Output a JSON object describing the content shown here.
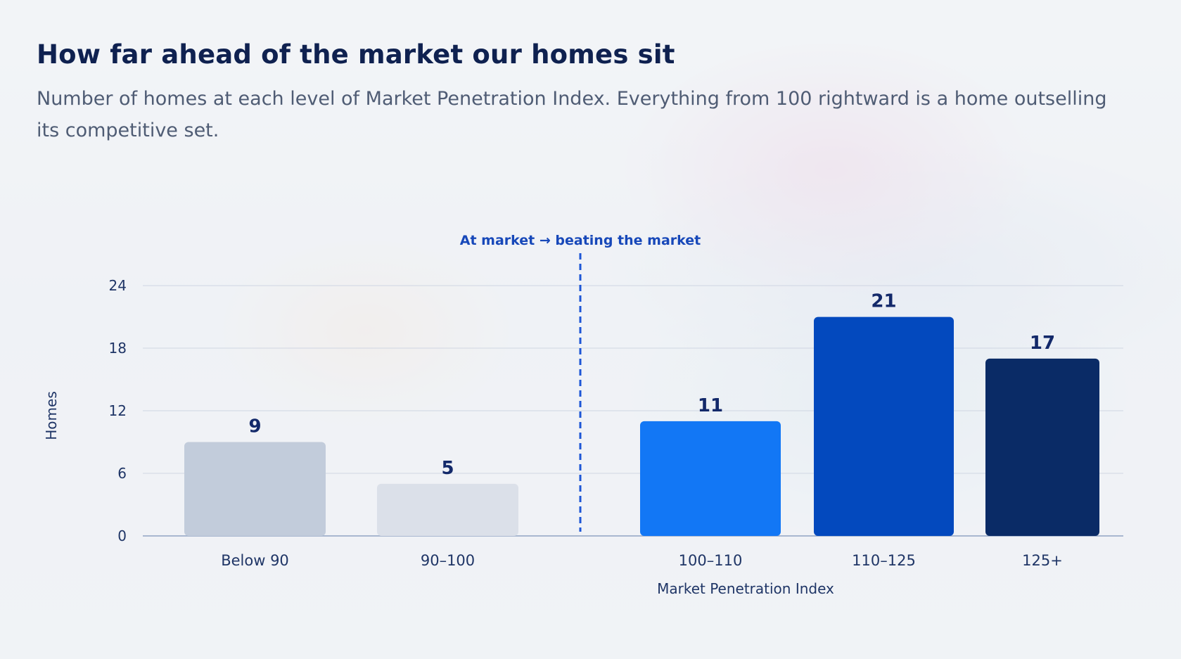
{
  "header": {
    "title": "How far ahead of the market our homes sit",
    "subtitle": "Number of homes at each level of Market Penetration Index. Everything from 100 rightward is a home outselling its competitive set."
  },
  "chart_data": {
    "type": "bar",
    "title": "How far ahead of the market our homes sit",
    "subtitle": "Number of homes at each level of Market Penetration Index. Everything from 100 rightward is a home outselling its competitive set.",
    "xlabel": "Market Penetration Index",
    "ylabel": "Homes",
    "categories": [
      "Below 90",
      "90–100",
      "100–110",
      "110–125",
      "125+"
    ],
    "values": [
      9,
      5,
      11,
      21,
      17
    ],
    "colors": [
      "#c2ccdb",
      "#dbe0e9",
      "#1277f5",
      "#0349be",
      "#0a2b66"
    ],
    "ylim": [
      0,
      26
    ],
    "yticks": [
      0,
      6,
      12,
      18,
      24
    ],
    "grid": true,
    "legend": "none",
    "annotation": {
      "text": "At market → beating the market",
      "at": 100,
      "color": "#1d56d6"
    }
  }
}
